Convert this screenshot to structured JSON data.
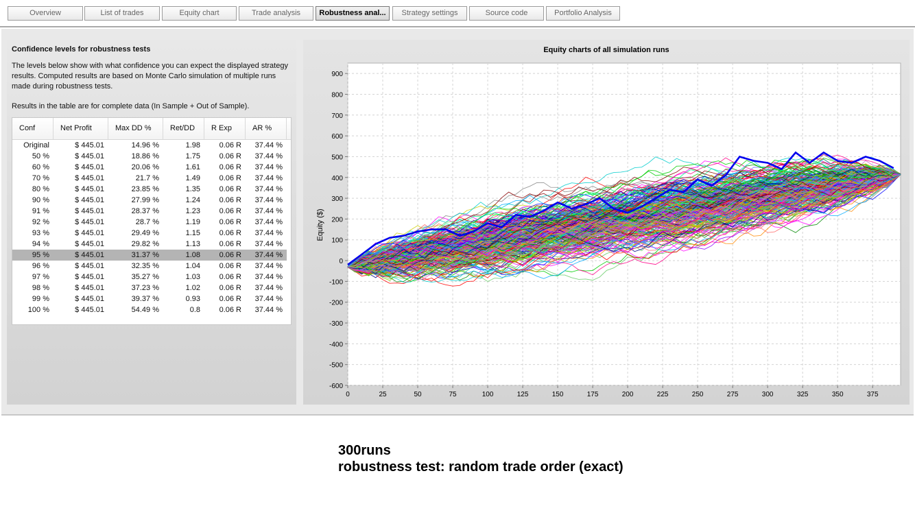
{
  "tabs": [
    {
      "label": "Overview",
      "active": false
    },
    {
      "label": "List of trades",
      "active": false
    },
    {
      "label": "Equity chart",
      "active": false
    },
    {
      "label": "Trade analysis",
      "active": false
    },
    {
      "label": "Robustness anal...",
      "active": true
    },
    {
      "label": "Strategy settings",
      "active": false
    },
    {
      "label": "Source code",
      "active": false
    },
    {
      "label": "Portfolio Analysis",
      "active": false
    }
  ],
  "confidence": {
    "title": "Confidence levels for robustness tests",
    "description": "The levels below show with what confidence you can expect the displayed strategy results. Computed results are based on Monte Carlo simulation of multiple runs made during robustness tests.",
    "note": "Results in the table are for complete data (In Sample + Out of Sample).",
    "columns": [
      "Conf",
      "Net Profit",
      "Max DD %",
      "Ret/DD",
      "R Exp",
      "AR %"
    ],
    "selected_row": 10,
    "rows": [
      [
        "Original",
        "$ 445.01",
        "14.96 %",
        "1.98",
        "0.06 R",
        "37.44 %"
      ],
      [
        "50 %",
        "$ 445.01",
        "18.86 %",
        "1.75",
        "0.06 R",
        "37.44 %"
      ],
      [
        "60 %",
        "$ 445.01",
        "20.06 %",
        "1.61",
        "0.06 R",
        "37.44 %"
      ],
      [
        "70 %",
        "$ 445.01",
        "21.7 %",
        "1.49",
        "0.06 R",
        "37.44 %"
      ],
      [
        "80 %",
        "$ 445.01",
        "23.85 %",
        "1.35",
        "0.06 R",
        "37.44 %"
      ],
      [
        "90 %",
        "$ 445.01",
        "27.99 %",
        "1.24",
        "0.06 R",
        "37.44 %"
      ],
      [
        "91 %",
        "$ 445.01",
        "28.37 %",
        "1.23",
        "0.06 R",
        "37.44 %"
      ],
      [
        "92 %",
        "$ 445.01",
        "28.7 %",
        "1.19",
        "0.06 R",
        "37.44 %"
      ],
      [
        "93 %",
        "$ 445.01",
        "29.49 %",
        "1.15",
        "0.06 R",
        "37.44 %"
      ],
      [
        "94 %",
        "$ 445.01",
        "29.82 %",
        "1.13",
        "0.06 R",
        "37.44 %"
      ],
      [
        "95 %",
        "$ 445.01",
        "31.37 %",
        "1.08",
        "0.06 R",
        "37.44 %"
      ],
      [
        "96 %",
        "$ 445.01",
        "32.35 %",
        "1.04",
        "0.06 R",
        "37.44 %"
      ],
      [
        "97 %",
        "$ 445.01",
        "35.27 %",
        "1.03",
        "0.06 R",
        "37.44 %"
      ],
      [
        "98 %",
        "$ 445.01",
        "37.23 %",
        "1.02",
        "0.06 R",
        "37.44 %"
      ],
      [
        "99 %",
        "$ 445.01",
        "39.37 %",
        "0.93",
        "0.06 R",
        "37.44 %"
      ],
      [
        "100 %",
        "$ 445.01",
        "54.49 %",
        "0.8",
        "0.06 R",
        "37.44 %"
      ]
    ]
  },
  "chart_data": {
    "type": "line",
    "title": "Equity charts of all simulation runs",
    "xlabel": "",
    "ylabel": "Equity ($)",
    "xlim": [
      0,
      395
    ],
    "ylim": [
      -600,
      950
    ],
    "x_ticks": [
      0,
      25,
      50,
      75,
      100,
      125,
      150,
      175,
      200,
      225,
      250,
      275,
      300,
      325,
      350,
      375
    ],
    "y_ticks": [
      -600,
      -500,
      -400,
      -300,
      -200,
      -100,
      0,
      100,
      200,
      300,
      400,
      500,
      600,
      700,
      800,
      900
    ],
    "grid": true,
    "final_equity": 445.01,
    "original_color": "#0000ee",
    "original_series": {
      "x": [
        0,
        10,
        20,
        30,
        40,
        50,
        60,
        70,
        80,
        90,
        100,
        110,
        120,
        130,
        140,
        150,
        160,
        170,
        180,
        190,
        200,
        210,
        220,
        230,
        240,
        250,
        260,
        270,
        280,
        290,
        300,
        310,
        320,
        330,
        340,
        350,
        360,
        370,
        380,
        390
      ],
      "y": [
        -20,
        30,
        80,
        110,
        120,
        140,
        150,
        150,
        120,
        140,
        180,
        160,
        220,
        210,
        240,
        280,
        250,
        270,
        300,
        250,
        230,
        260,
        300,
        340,
        330,
        390,
        360,
        410,
        500,
        480,
        470,
        440,
        520,
        470,
        520,
        480,
        470,
        500,
        480,
        445
      ]
    },
    "series_count": 300,
    "palette": [
      "#ff0000",
      "#00cc00",
      "#0000ff",
      "#ff00ff",
      "#00cccc",
      "#cccc00",
      "#ff8800",
      "#8800ff",
      "#ff0088",
      "#00ff88",
      "#888888",
      "#008800",
      "#880000",
      "#000088",
      "#88cc00",
      "#ff6666",
      "#6666ff",
      "#66cc66",
      "#cc66cc",
      "#00aaff"
    ]
  },
  "footer": {
    "line1": "300runs",
    "line2": "robustness test: random trade order (exact)"
  }
}
